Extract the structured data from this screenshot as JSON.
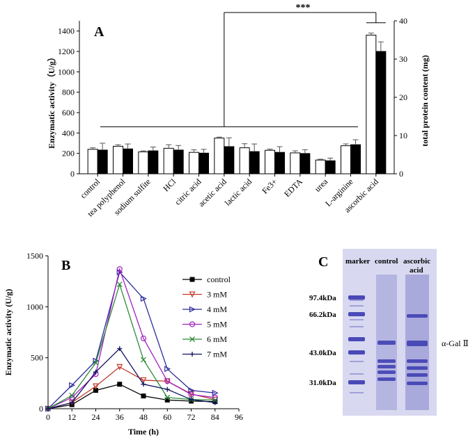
{
  "panel_a": {
    "panel_label": "A",
    "significance": "***",
    "chart_data": {
      "type": "bar",
      "categories": [
        "control",
        "tea polyphenol",
        "sodium sulfite",
        "HCl",
        "citric acid",
        "acetic acid",
        "lactic acid",
        "Fe3+",
        "EDTA",
        "urea",
        "L-arginine",
        "ascorbic acid"
      ],
      "series": [
        {
          "values": [
            240,
            270,
            215,
            250,
            210,
            350,
            255,
            230,
            205,
            135,
            275,
            1360
          ],
          "errors": [
            15,
            15,
            10,
            35,
            25,
            10,
            40,
            12,
            20,
            8,
            18,
            20
          ],
          "color": "#ffffff"
        },
        {
          "values": [
            6.2,
            6.5,
            6.0,
            6.2,
            5.4,
            7.1,
            5.8,
            5.6,
            5.3,
            3.4,
            7.6,
            32.0
          ],
          "errors": [
            1.8,
            1.3,
            1.0,
            1.2,
            1.0,
            2.3,
            2.0,
            1.5,
            1.0,
            0.7,
            1.3,
            2.5
          ],
          "color": "#000000"
        }
      ],
      "ylabel": "Enzymatic activity（U/g）",
      "y2label": "total protein content (mg)",
      "ylim": [
        0,
        1500
      ],
      "yticks": [
        "0",
        "200",
        "400",
        "600",
        "800",
        "1000",
        "1200",
        "1400"
      ],
      "y2lim": [
        0,
        40
      ],
      "y2ticks": [
        "0",
        "10",
        "20",
        "30",
        "40"
      ],
      "grid": false
    }
  },
  "panel_b": {
    "panel_label": "B",
    "chart_data": {
      "type": "line",
      "x": [
        0,
        12,
        24,
        36,
        48,
        60,
        72,
        84
      ],
      "series": [
        {
          "name": "control",
          "values": [
            0,
            40,
            180,
            240,
            125,
            85,
            75,
            70
          ],
          "color": "#000000",
          "marker": "square"
        },
        {
          "name": "3 mM",
          "values": [
            0,
            60,
            220,
            410,
            280,
            270,
            145,
            90
          ],
          "color": "#c0392b",
          "marker": "triangle-down"
        },
        {
          "name": "4 mM",
          "values": [
            0,
            230,
            470,
            1340,
            1080,
            390,
            180,
            155
          ],
          "color": "#2b2b9b",
          "marker": "triangle-right"
        },
        {
          "name": "5 mM",
          "values": [
            0,
            110,
            340,
            1370,
            690,
            270,
            140,
            110
          ],
          "color": "#a020c0",
          "marker": "circle"
        },
        {
          "name": "6 mM",
          "values": [
            0,
            130,
            450,
            1220,
            480,
            110,
            90,
            85
          ],
          "color": "#2e8b3a",
          "marker": "x"
        },
        {
          "name": "7 mM",
          "values": [
            0,
            60,
            360,
            590,
            240,
            190,
            90,
            60
          ],
          "color": "#101060",
          "marker": "plus"
        }
      ],
      "xlabel": "Time (h)",
      "ylabel": "Enzymatic activity (U/g)",
      "xlim": [
        0,
        96
      ],
      "xticks": [
        "0",
        "12",
        "24",
        "36",
        "48",
        "60",
        "72",
        "84",
        "96"
      ],
      "ylim": [
        0,
        1500
      ],
      "yticks": [
        "0",
        "500",
        "1000",
        "1500"
      ],
      "legend": "right",
      "grid": false
    }
  },
  "panel_c": {
    "panel_label": "C",
    "lane_labels": {
      "marker": "marker",
      "control": "control",
      "ascorbic_1": "ascorbic",
      "ascorbic_2": "acid"
    },
    "mw_labels": [
      "97.4kDa",
      "66.2kDa",
      "43.0kDa",
      "31.0kDa"
    ],
    "band_label": "α-Gal Ⅱ",
    "gel_color": "#d8d8f0",
    "band_color": "#3a3ab0"
  }
}
